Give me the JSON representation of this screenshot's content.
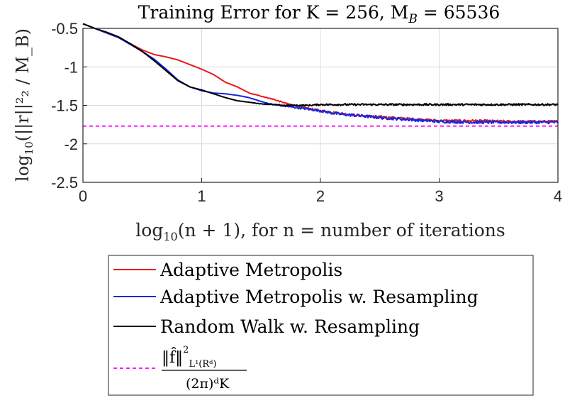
{
  "chart_data": {
    "type": "line",
    "title": "Training Error for K = 256, M",
    "title_subscript": "B",
    "title_suffix": " = 65536",
    "xlabel": "log",
    "xlabel_subscript": "10",
    "xlabel_suffix": "(n + 1), for n = number of iterations",
    "ylabel": "log",
    "ylabel_subscript": "10",
    "ylabel_suffix": "(||r||²₂ / M_B)",
    "xlim": [
      0,
      4
    ],
    "ylim": [
      -2.5,
      -0.5
    ],
    "xticks": [
      0,
      1,
      2,
      3,
      4
    ],
    "xtick_labels": [
      "0",
      "1",
      "2",
      "3",
      "4"
    ],
    "yticks": [
      -2.5,
      -2,
      -1.5,
      -1,
      -0.5
    ],
    "ytick_labels": [
      "-2.5",
      "-2",
      "-1.5",
      "-1",
      "-0.5"
    ],
    "grid": true,
    "legend_position": "below-plot",
    "series": [
      {
        "name": "Adaptive Metropolis",
        "color": "#e8181e",
        "style": "solid",
        "x": [
          0,
          0.1,
          0.2,
          0.3,
          0.4,
          0.5,
          0.6,
          0.7,
          0.8,
          0.9,
          1.0,
          1.1,
          1.2,
          1.3,
          1.4,
          1.5,
          1.6,
          1.7,
          1.8,
          1.9,
          2.0,
          2.1,
          2.2,
          2.3,
          2.5,
          2.7,
          3.0,
          3.3,
          3.6,
          4.0
        ],
        "y": [
          -0.44,
          -0.5,
          -0.56,
          -0.62,
          -0.7,
          -0.78,
          -0.84,
          -0.87,
          -0.91,
          -0.97,
          -1.03,
          -1.1,
          -1.2,
          -1.26,
          -1.34,
          -1.38,
          -1.42,
          -1.47,
          -1.51,
          -1.54,
          -1.57,
          -1.59,
          -1.61,
          -1.63,
          -1.65,
          -1.67,
          -1.7,
          -1.7,
          -1.71,
          -1.71
        ],
        "noise": 0.015
      },
      {
        "name": "Adaptive Metropolis w. Resampling",
        "color": "#1428e0",
        "style": "solid",
        "x": [
          0,
          0.1,
          0.2,
          0.3,
          0.4,
          0.5,
          0.6,
          0.7,
          0.8,
          0.9,
          1.0,
          1.1,
          1.2,
          1.3,
          1.4,
          1.5,
          1.6,
          1.7,
          1.8,
          1.9,
          2.0,
          2.1,
          2.2,
          2.3,
          2.5,
          2.7,
          3.0,
          3.3,
          3.6,
          4.0
        ],
        "y": [
          -0.44,
          -0.5,
          -0.56,
          -0.62,
          -0.71,
          -0.8,
          -0.9,
          -1.03,
          -1.17,
          -1.26,
          -1.31,
          -1.34,
          -1.35,
          -1.37,
          -1.4,
          -1.45,
          -1.49,
          -1.51,
          -1.53,
          -1.55,
          -1.57,
          -1.6,
          -1.62,
          -1.63,
          -1.66,
          -1.68,
          -1.71,
          -1.72,
          -1.72,
          -1.72
        ],
        "noise": 0.018
      },
      {
        "name": "Random Walk w. Resampling",
        "color": "#000000",
        "style": "solid",
        "x": [
          0,
          0.1,
          0.2,
          0.3,
          0.4,
          0.5,
          0.6,
          0.7,
          0.8,
          0.9,
          1.0,
          1.1,
          1.2,
          1.3,
          1.4,
          1.5,
          1.6,
          1.7,
          1.8,
          1.9,
          2.0,
          2.5,
          3.0,
          3.5,
          4.0
        ],
        "y": [
          -0.44,
          -0.5,
          -0.55,
          -0.61,
          -0.7,
          -0.8,
          -0.92,
          -1.05,
          -1.18,
          -1.26,
          -1.3,
          -1.35,
          -1.4,
          -1.44,
          -1.46,
          -1.48,
          -1.49,
          -1.5,
          -1.5,
          -1.5,
          -1.49,
          -1.49,
          -1.49,
          -1.49,
          -1.49
        ],
        "noise": 0.012
      },
      {
        "name": "‖f̂‖²_{L¹(Rᵈ)} / ((2π)ᵈ K)",
        "legend_numerator": "‖f̂‖",
        "legend_numerator_sup": "2",
        "legend_numerator_sub": "L¹(Rᵈ)",
        "legend_denominator": "(2π)ᵈK",
        "color": "#ff1cff",
        "style": "dashed",
        "x": [
          0,
          4
        ],
        "y": [
          -1.77,
          -1.77
        ]
      }
    ]
  }
}
